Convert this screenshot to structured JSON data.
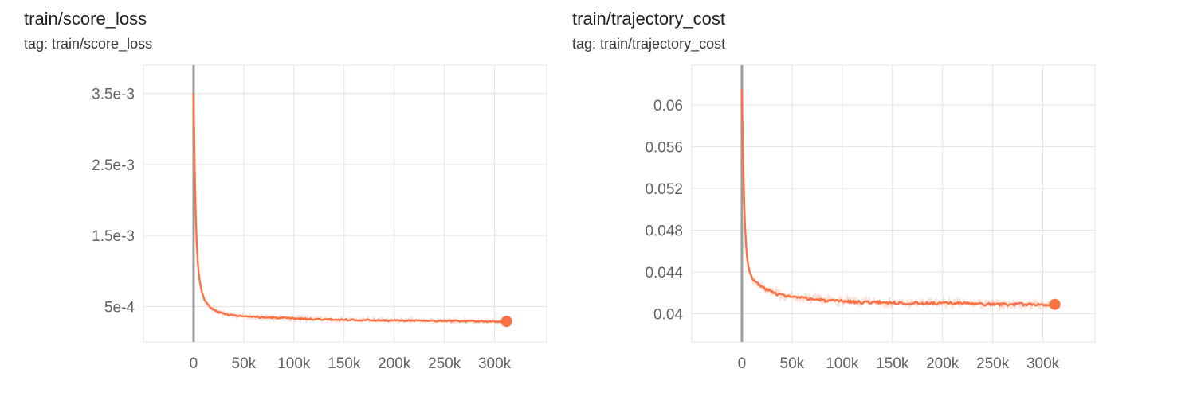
{
  "page": {
    "background": "#ffffff"
  },
  "chart_data": [
    {
      "type": "line",
      "title": "train/score_loss",
      "subtitle": "tag: train/score_loss",
      "color": "#ff7043",
      "grid_color": "#e3e3e3",
      "zero_line_color": "#9e9e9e",
      "legend_position": "none",
      "grid": true,
      "xlim": [
        -50000,
        352000
      ],
      "ylim": [
        0,
        0.0039
      ],
      "x_tick_values": [
        0,
        50000,
        100000,
        150000,
        200000,
        250000,
        300000
      ],
      "x_tick_labels": [
        "0",
        "50k",
        "100k",
        "150k",
        "200k",
        "250k",
        "300k"
      ],
      "y_tick_values": [
        0.0005,
        0.0015,
        0.0025,
        0.0035
      ],
      "y_tick_labels": [
        "5e-4",
        "1.5e-3",
        "2.5e-3",
        "3.5e-3"
      ],
      "noise": 1.35e-05,
      "zero_line_x": 0,
      "series": [
        {
          "name": "train",
          "x": [
            0,
            500,
            1000,
            1500,
            2000,
            3000,
            4000,
            5000,
            6000,
            8000,
            10000,
            12000,
            15000,
            18000,
            21000,
            25000,
            30000,
            35000,
            40000,
            50000,
            60000,
            70000,
            80000,
            90000,
            100000,
            120000,
            140000,
            160000,
            180000,
            200000,
            220000,
            240000,
            260000,
            280000,
            300000,
            312000
          ],
          "y": [
            0.0035,
            0.003,
            0.00255,
            0.00215,
            0.00185,
            0.0014,
            0.00115,
            0.00098,
            0.00087,
            0.00072,
            0.00063,
            0.00057,
            0.00051,
            0.00047,
            0.000445,
            0.00042,
            0.0004,
            0.000385,
            0.000375,
            0.00036,
            0.00035,
            0.000345,
            0.00034,
            0.000335,
            0.00033,
            0.00032,
            0.000315,
            0.00031,
            0.000305,
            0.0003,
            0.0003,
            0.000295,
            0.000295,
            0.00029,
            0.00029,
            0.00029
          ]
        }
      ],
      "end_marker": {
        "x": 312000,
        "y": 0.00029
      }
    },
    {
      "type": "line",
      "title": "train/trajectory_cost",
      "subtitle": "tag: train/trajectory_cost",
      "color": "#ff7043",
      "grid_color": "#e3e3e3",
      "zero_line_color": "#9e9e9e",
      "legend_position": "none",
      "grid": true,
      "xlim": [
        -50000,
        352000
      ],
      "ylim": [
        0.0373,
        0.0638
      ],
      "x_tick_values": [
        0,
        50000,
        100000,
        150000,
        200000,
        250000,
        300000
      ],
      "x_tick_labels": [
        "0",
        "50k",
        "100k",
        "150k",
        "200k",
        "250k",
        "300k"
      ],
      "y_tick_values": [
        0.04,
        0.044,
        0.048,
        0.052,
        0.056,
        0.06
      ],
      "y_tick_labels": [
        "0.04",
        "0.044",
        "0.048",
        "0.052",
        "0.056",
        "0.06"
      ],
      "noise": 0.00018,
      "zero_line_x": 0,
      "series": [
        {
          "name": "train",
          "x": [
            0,
            500,
            1000,
            1500,
            2000,
            3000,
            4000,
            5000,
            6000,
            8000,
            10000,
            12000,
            15000,
            18000,
            21000,
            25000,
            30000,
            35000,
            40000,
            50000,
            60000,
            70000,
            80000,
            90000,
            100000,
            120000,
            140000,
            160000,
            180000,
            200000,
            220000,
            240000,
            260000,
            280000,
            300000,
            312000
          ],
          "y": [
            0.0615,
            0.059,
            0.056,
            0.0535,
            0.0515,
            0.0485,
            0.0467,
            0.0455,
            0.0448,
            0.044,
            0.0435,
            0.0432,
            0.0429,
            0.0427,
            0.0425,
            0.0423,
            0.0421,
            0.0419,
            0.0418,
            0.0416,
            0.0415,
            0.0414,
            0.0413,
            0.0412,
            0.0412,
            0.0411,
            0.0411,
            0.041,
            0.041,
            0.041,
            0.041,
            0.0409,
            0.0409,
            0.0409,
            0.0409,
            0.0409
          ]
        }
      ],
      "end_marker": {
        "x": 312000,
        "y": 0.0409
      }
    }
  ]
}
